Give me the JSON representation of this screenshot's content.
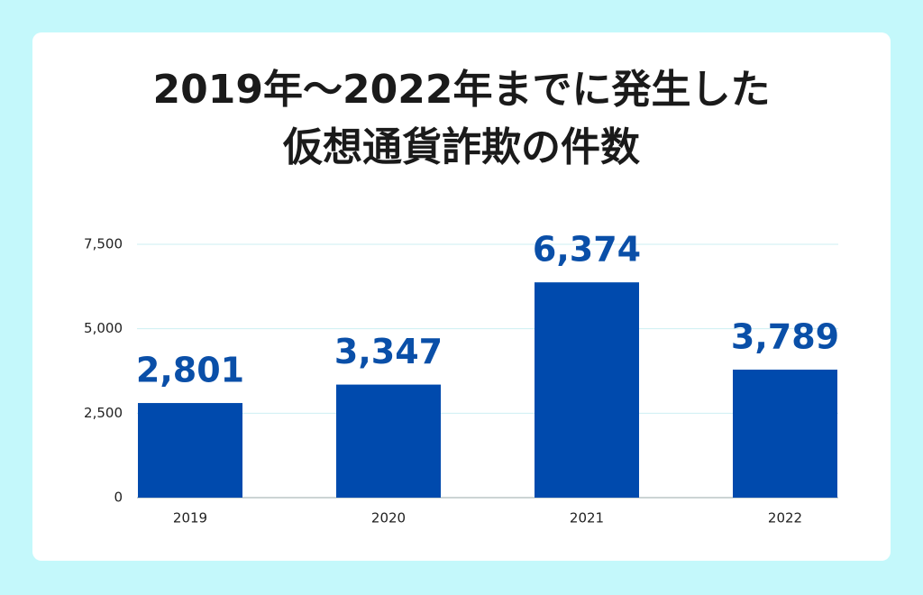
{
  "chart_data": {
    "type": "bar",
    "title": [
      "2019年～2022年までに発生した",
      "仮想通貨詐欺の件数"
    ],
    "categories": [
      "2019",
      "2020",
      "2021",
      "2022"
    ],
    "values": [
      2801,
      3347,
      6374,
      3789
    ],
    "value_labels": [
      "2,801",
      "3,347",
      "6,374",
      "3,789"
    ],
    "color": "#004aad",
    "ylim": [
      0,
      7500
    ],
    "yticks": [
      0,
      {
        "value": 2500,
        "label": "2,500"
      },
      {
        "value": 5000,
        "label": "5,000"
      },
      {
        "value": 7500,
        "label": "7,500"
      }
    ],
    "grid": true
  }
}
